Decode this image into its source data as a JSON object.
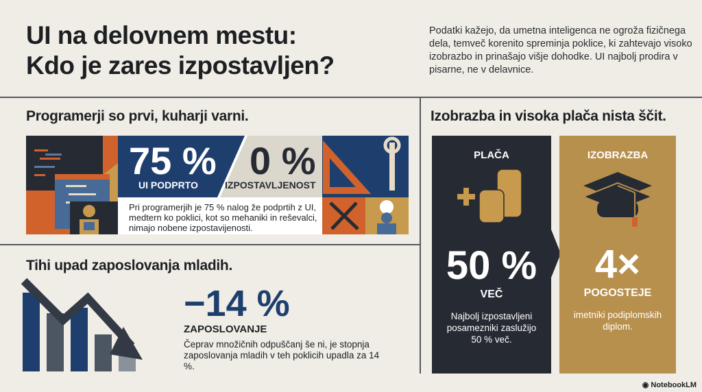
{
  "title_line1": "UI na delovnem mestu:",
  "title_line2": "Kdo je zares izpostavljen?",
  "intro": "Podatki kažejo, da umetna inteligenca ne ogroža fizičnega dela, temveč korenito spreminja poklice, ki zahtevajo visoko izobrazbo in prinašajo višje dohodke. UI najbolj prodira v pisarne, ne v delavnice.",
  "section1": {
    "heading": "Programerji so prvi, kuharji varni.",
    "stat1_value": "75 %",
    "stat1_label": "UI PODPRTO",
    "stat2_value": "0 %",
    "stat2_label": "IZPOSTAVLJENOST",
    "text": "Pri programerjih je 75 % nalog že podprtih z UI, medtern ko poklici, kot so mehaniki in reševalci, nimajo nobene izpostavijenosti."
  },
  "section2": {
    "heading": "Tihi upad zaposlovanja mladih.",
    "stat_value": "−14 %",
    "stat_label": "ZAPOSLOVANJE",
    "text": "Čeprav množičnih odpuščanj še ni, je stopnja zaposlovanja mladih v teh poklicih upadla za 14 %."
  },
  "section3": {
    "heading": "Izobrazba in visoka plača nista ščit.",
    "salary": {
      "title": "PLAČA",
      "value": "50 %",
      "label": "VEČ",
      "text": "Najbolj izpostavljeni posamezniki zaslužijo 50 % več."
    },
    "education": {
      "title": "IZOBRAZBA",
      "value": "4×",
      "label": "POGOSTEJE",
      "text": "imetniki podiplomskih diplom."
    }
  },
  "brand": "NotebookLM",
  "colors": {
    "blue": "#1e3f6e",
    "dark": "#262b33",
    "gold": "#b8904e",
    "orange": "#d2622c",
    "background": "#efede6"
  }
}
